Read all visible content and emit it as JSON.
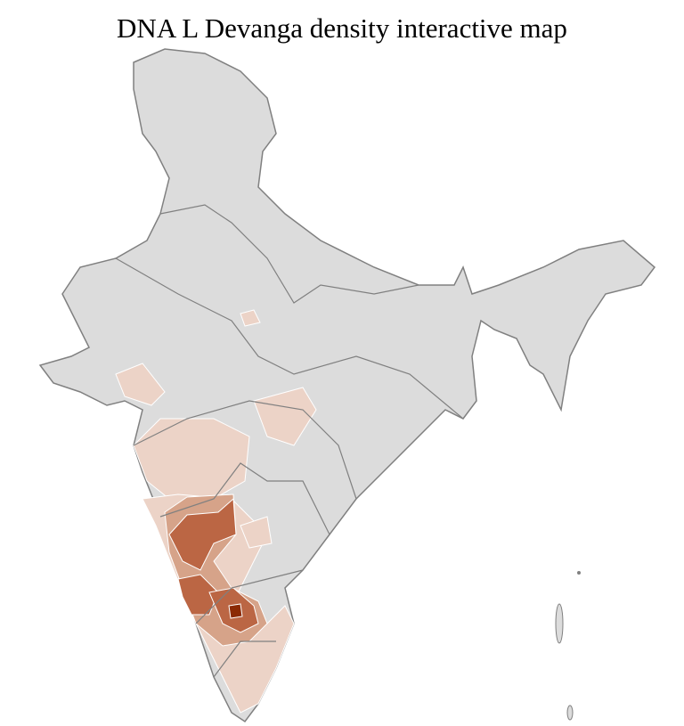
{
  "title": "DNA L Devanga density interactive map",
  "colors": {
    "no_data": "#dcdcdc",
    "border": "#808080",
    "level_1": "#ecd3c7",
    "level_2": "#d6a389",
    "level_3": "#bb6644",
    "level_4": "#8b2a05"
  }
}
